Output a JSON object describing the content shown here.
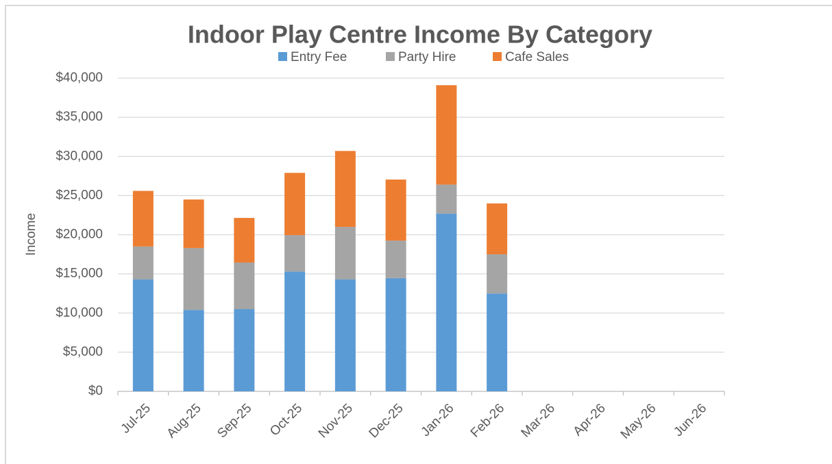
{
  "chart_data": {
    "type": "stacked_bar",
    "title": "Indoor Play Centre Income By Category",
    "y_label": "Income",
    "categories": [
      "Jul-25",
      "Aug-25",
      "Sep-25",
      "Oct-25",
      "Nov-25",
      "Dec-25",
      "Jan-26",
      "Feb-26",
      "Mar-26",
      "Apr-26",
      "May-26",
      "Jun-26"
    ],
    "series": [
      {
        "name": "Entry Fee",
        "color": "#5b9bd5",
        "values": [
          14300,
          10400,
          10500,
          15300,
          14300,
          14450,
          22700,
          12500,
          null,
          null,
          null,
          null
        ]
      },
      {
        "name": "Party Hire",
        "color": "#a5a5a5",
        "values": [
          4200,
          7900,
          5950,
          4650,
          6700,
          4800,
          3700,
          5000,
          null,
          null,
          null,
          null
        ]
      },
      {
        "name": "Cafe Sales",
        "color": "#ed7d31",
        "values": [
          7100,
          6200,
          5700,
          7950,
          9700,
          7800,
          12700,
          6500,
          null,
          null,
          null,
          null
        ]
      }
    ],
    "ylim": [
      0,
      40000
    ],
    "yticks": [
      {
        "value": 0,
        "label": "$0"
      },
      {
        "value": 5000,
        "label": "$5,000"
      },
      {
        "value": 10000,
        "label": "$10,000"
      },
      {
        "value": 15000,
        "label": "$15,000"
      },
      {
        "value": 20000,
        "label": "$20,000"
      },
      {
        "value": 25000,
        "label": "$25,000"
      },
      {
        "value": 30000,
        "label": "$30,000"
      },
      {
        "value": 35000,
        "label": "$35,000"
      },
      {
        "value": 40000,
        "label": "$40,000"
      }
    ],
    "grid": true,
    "legend": "top"
  }
}
